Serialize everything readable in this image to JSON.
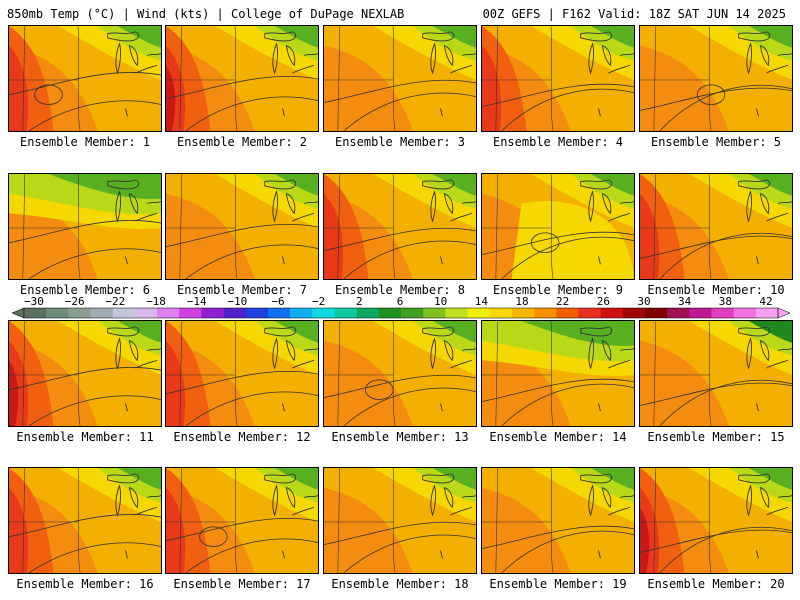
{
  "header": {
    "left": "850mb Temp (°C) | Wind (kts) | College of DuPage NEXLAB",
    "right": "00Z GEFS | F162 Valid: 18Z SAT JUN 14 2025"
  },
  "members": [
    {
      "label": "Ensemble Member: 1",
      "style": "hot-west"
    },
    {
      "label": "Ensemble Member: 2",
      "style": "very-hot-west"
    },
    {
      "label": "Ensemble Member: 3",
      "style": "warm"
    },
    {
      "label": "Ensemble Member: 4",
      "style": "hot-southwest"
    },
    {
      "label": "Ensemble Member: 5",
      "style": "warm"
    },
    {
      "label": "Ensemble Member: 6",
      "style": "cool-north"
    },
    {
      "label": "Ensemble Member: 7",
      "style": "warm"
    },
    {
      "label": "Ensemble Member: 8",
      "style": "hot-west"
    },
    {
      "label": "Ensemble Member: 9",
      "style": "yellow"
    },
    {
      "label": "Ensemble Member: 10",
      "style": "hot-west"
    },
    {
      "label": "Ensemble Member: 11",
      "style": "very-hot-west"
    },
    {
      "label": "Ensemble Member: 12",
      "style": "hot-west"
    },
    {
      "label": "Ensemble Member: 13",
      "style": "warm"
    },
    {
      "label": "Ensemble Member: 14",
      "style": "cool-north"
    },
    {
      "label": "Ensemble Member: 15",
      "style": "cool-northeast"
    },
    {
      "label": "Ensemble Member: 16",
      "style": "hot-west"
    },
    {
      "label": "Ensemble Member: 17",
      "style": "hot-west"
    },
    {
      "label": "Ensemble Member: 18",
      "style": "warm"
    },
    {
      "label": "Ensemble Member: 19",
      "style": "warm"
    },
    {
      "label": "Ensemble Member: 20",
      "style": "very-hot-west"
    }
  ],
  "colorbar": {
    "ticks": [
      "−30",
      "−26",
      "−22",
      "−18",
      "−14",
      "−10",
      "−6",
      "−2",
      "2",
      "6",
      "10",
      "14",
      "18",
      "22",
      "26",
      "30",
      "34",
      "38",
      "42"
    ],
    "colors": [
      "#5a7060",
      "#6e8a78",
      "#8a9c90",
      "#a2aab2",
      "#c4c8d8",
      "#d8b8e8",
      "#e080f0",
      "#d040e0",
      "#9020d0",
      "#5020c8",
      "#2040e0",
      "#1070f0",
      "#10b0f0",
      "#10d8e0",
      "#10c8a0",
      "#10a860",
      "#209020",
      "#40a020",
      "#80c020",
      "#c0e020",
      "#f0f000",
      "#f8d800",
      "#f8b800",
      "#f89000",
      "#f06000",
      "#e83020",
      "#d01010",
      "#a00808",
      "#800000",
      "#a01050",
      "#c01890",
      "#e040c0",
      "#f070e0",
      "#f8a0f0"
    ],
    "palette": {
      "deep_red": "#c81818",
      "red": "#e83a18",
      "orange_red": "#f06010",
      "orange": "#f48c10",
      "amber": "#f4b000",
      "yellow": "#f4d800",
      "lime": "#b8d818",
      "green": "#58b020",
      "dark_green": "#208820"
    }
  }
}
